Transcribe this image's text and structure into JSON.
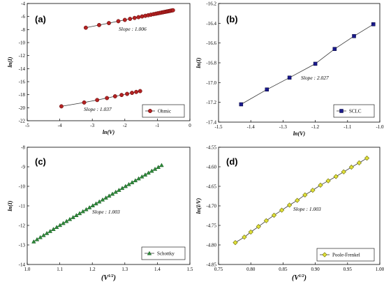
{
  "chart_data": [
    {
      "type": "line",
      "panel": "(a)",
      "xlabel": "ln(V)",
      "ylabel": "ln(I)",
      "xlim": [
        -5,
        0
      ],
      "ylim": [
        -22,
        -4
      ],
      "xticks": [
        "-5",
        "-4",
        "-3",
        "-2",
        "-1",
        "0"
      ],
      "yticks": [
        "-22",
        "-20",
        "-18",
        "-16",
        "-14",
        "-12",
        "-10",
        "-8",
        "-6",
        "-4"
      ],
      "marker": "circle",
      "color": "#b22222",
      "legend": "Ohmic",
      "legend_position": "bottom-right",
      "annotations": [
        "Slope : 1.006",
        "Slope : 1.037"
      ],
      "series": [
        {
          "x": [
            -3.2,
            -2.79,
            -2.49,
            -2.2,
            -2.0,
            -1.84,
            -1.7,
            -1.58,
            -1.47,
            -1.37,
            -1.28,
            -1.2,
            -1.12,
            -1.05,
            -0.99,
            -0.93,
            -0.87,
            -0.82,
            -0.77,
            -0.72,
            -0.68,
            -0.64,
            -0.6,
            -0.56,
            -0.52
          ],
          "y": [
            -7.72,
            -7.31,
            -7.01,
            -6.72,
            -6.52,
            -6.36,
            -6.22,
            -6.1,
            -5.99,
            -5.89,
            -5.8,
            -5.72,
            -5.64,
            -5.57,
            -5.51,
            -5.45,
            -5.39,
            -5.34,
            -5.29,
            -5.24,
            -5.2,
            -5.16,
            -5.12,
            -5.08,
            -5.04
          ]
        },
        {
          "x": [
            -3.95,
            -3.25,
            -2.85,
            -2.55,
            -2.3,
            -2.1,
            -1.93,
            -1.78,
            -1.65,
            -1.53
          ],
          "y": [
            -19.79,
            -19.2,
            -18.82,
            -18.52,
            -18.25,
            -18.05,
            -17.88,
            -17.72,
            -17.58,
            -17.45
          ]
        }
      ]
    },
    {
      "type": "line",
      "panel": "(b)",
      "xlabel": "ln(V)",
      "ylabel": "ln(I)",
      "xlim": [
        -1.5,
        -1.0
      ],
      "ylim": [
        -17.4,
        -16.2
      ],
      "xticks": [
        "-1.5",
        "-1.4",
        "-1.3",
        "-1.2",
        "-1.1",
        "-1.0"
      ],
      "yticks": [
        "-17.4",
        "-17.2",
        "-17.0",
        "-16.8",
        "-16.6",
        "-16.4",
        "-16.2"
      ],
      "marker": "square",
      "color": "#1a1a8c",
      "legend": "SCLC",
      "legend_position": "bottom-right",
      "annotations": [
        "Slope : 2.027"
      ],
      "series": [
        {
          "x": [
            -1.43,
            -1.35,
            -1.28,
            -1.2,
            -1.14,
            -1.08,
            -1.02
          ],
          "y": [
            -17.22,
            -17.07,
            -16.95,
            -16.81,
            -16.66,
            -16.53,
            -16.41
          ]
        }
      ]
    },
    {
      "type": "line",
      "panel": "(c)",
      "xlabel": "(V1/2)",
      "ylabel": "ln(I)",
      "xlim": [
        1.0,
        1.5
      ],
      "ylim": [
        -14,
        -8
      ],
      "xticks": [
        "1.0",
        "1.1",
        "1.2",
        "1.3",
        "1.4",
        "1.5"
      ],
      "yticks": [
        "-14",
        "-13",
        "-12",
        "-11",
        "-10",
        "-9",
        "-8"
      ],
      "marker": "triangle",
      "color": "#2e8b3a",
      "legend": "Schottky",
      "legend_position": "bottom-right",
      "annotations": [
        "Slope : 1.003"
      ],
      "series": [
        {
          "x_start": 1.02,
          "x_end": 1.413,
          "n": 40,
          "y_start": -12.83,
          "y_end": -8.92
        }
      ]
    },
    {
      "type": "line",
      "panel": "(d)",
      "xlabel": "(V1/2)",
      "ylabel": "ln(I/V)",
      "xlim": [
        0.75,
        1.0
      ],
      "ylim": [
        -4.85,
        -4.55
      ],
      "xticks": [
        "0.75",
        "0.80",
        "0.85",
        "0.90",
        "0.95",
        "1.00"
      ],
      "yticks": [
        "-4.85",
        "-4.80",
        "-4.75",
        "-4.70",
        "-4.65",
        "-4.60",
        "-4.55"
      ],
      "marker": "diamond",
      "color": "#e0e03a",
      "legend": "Poole-Frenkel",
      "legend_position": "bottom-right",
      "annotations": [
        "Slope : 1.003"
      ],
      "series": [
        {
          "x": [
            0.776,
            0.79,
            0.8,
            0.812,
            0.824,
            0.836,
            0.848,
            0.86,
            0.872,
            0.884,
            0.896,
            0.908,
            0.92,
            0.932,
            0.944,
            0.956,
            0.968,
            0.98
          ],
          "y": [
            -4.794,
            -4.78,
            -4.767,
            -4.753,
            -4.738,
            -4.724,
            -4.711,
            -4.698,
            -4.686,
            -4.672,
            -4.66,
            -4.647,
            -4.636,
            -4.625,
            -4.613,
            -4.601,
            -4.59,
            -4.578
          ]
        }
      ]
    }
  ]
}
